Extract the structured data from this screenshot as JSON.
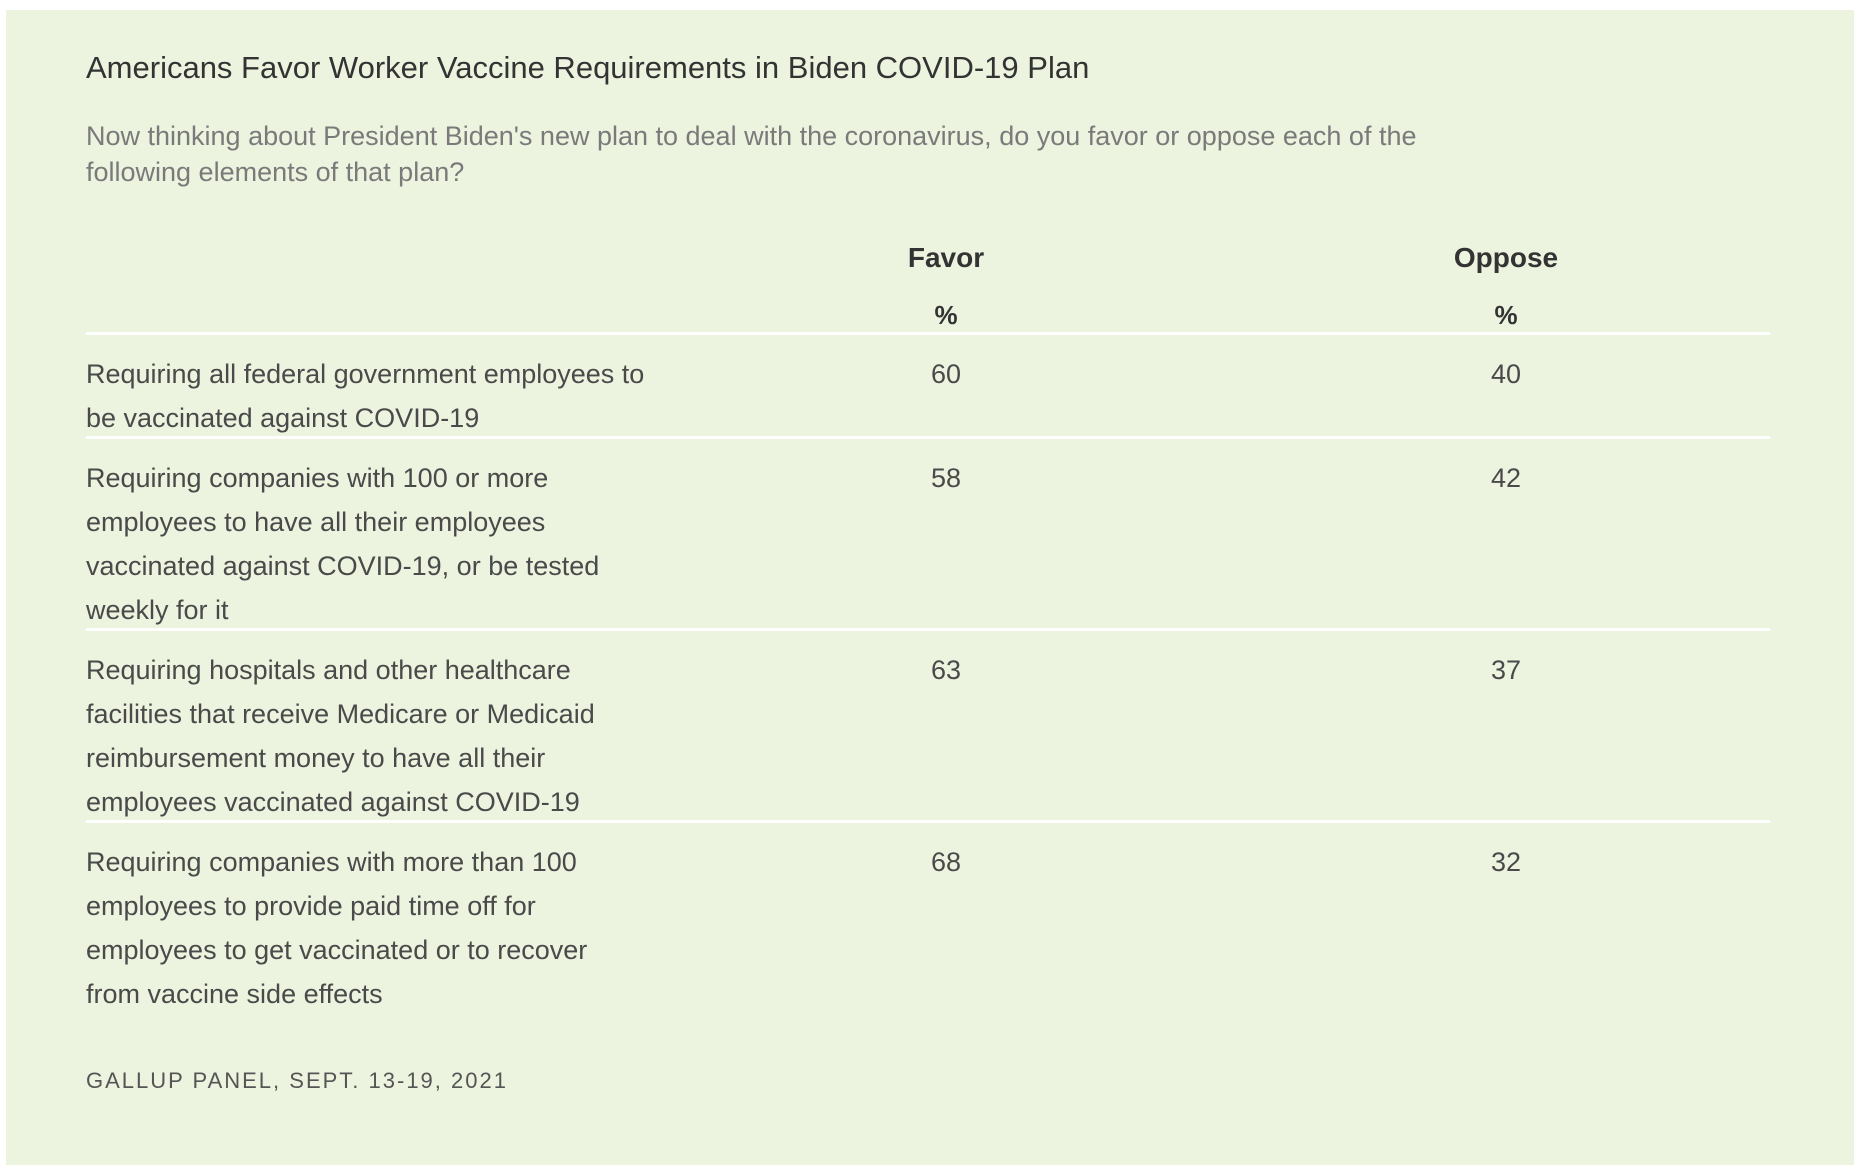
{
  "chart_data": {
    "type": "table",
    "title": "Americans Favor Worker Vaccine Requirements in Biden COVID-19 Plan",
    "subtitle": "Now thinking about President Biden's new plan to deal with the coronavirus, do you favor or oppose each of the following elements of that plan?",
    "columns": [
      {
        "name": "Favor",
        "unit": "%"
      },
      {
        "name": "Oppose",
        "unit": "%"
      }
    ],
    "rows": [
      {
        "label": "Requiring all federal government employees to be vaccinated against COVID-19",
        "values": [
          "60",
          "40"
        ]
      },
      {
        "label": "Requiring companies with 100 or more employees to have all their employees vaccinated against COVID-19, or be tested weekly for it",
        "values": [
          "58",
          "42"
        ]
      },
      {
        "label": "Requiring hospitals and other healthcare facilities that receive Medicare or Medicaid reimbursement money to have all their employees vaccinated against COVID-19",
        "values": [
          "63",
          "37"
        ]
      },
      {
        "label": "Requiring companies with more than 100 employees to provide paid time off for employees to get vaccinated or to recover from vaccine side effects",
        "values": [
          "68",
          "32"
        ]
      }
    ],
    "source": "GALLUP PANEL, SEPT. 13-19, 2021"
  },
  "colors": {
    "background": "#ecf3de",
    "divider": "#ffffff",
    "title": "#333333",
    "subtitle": "#7a7a7a"
  }
}
